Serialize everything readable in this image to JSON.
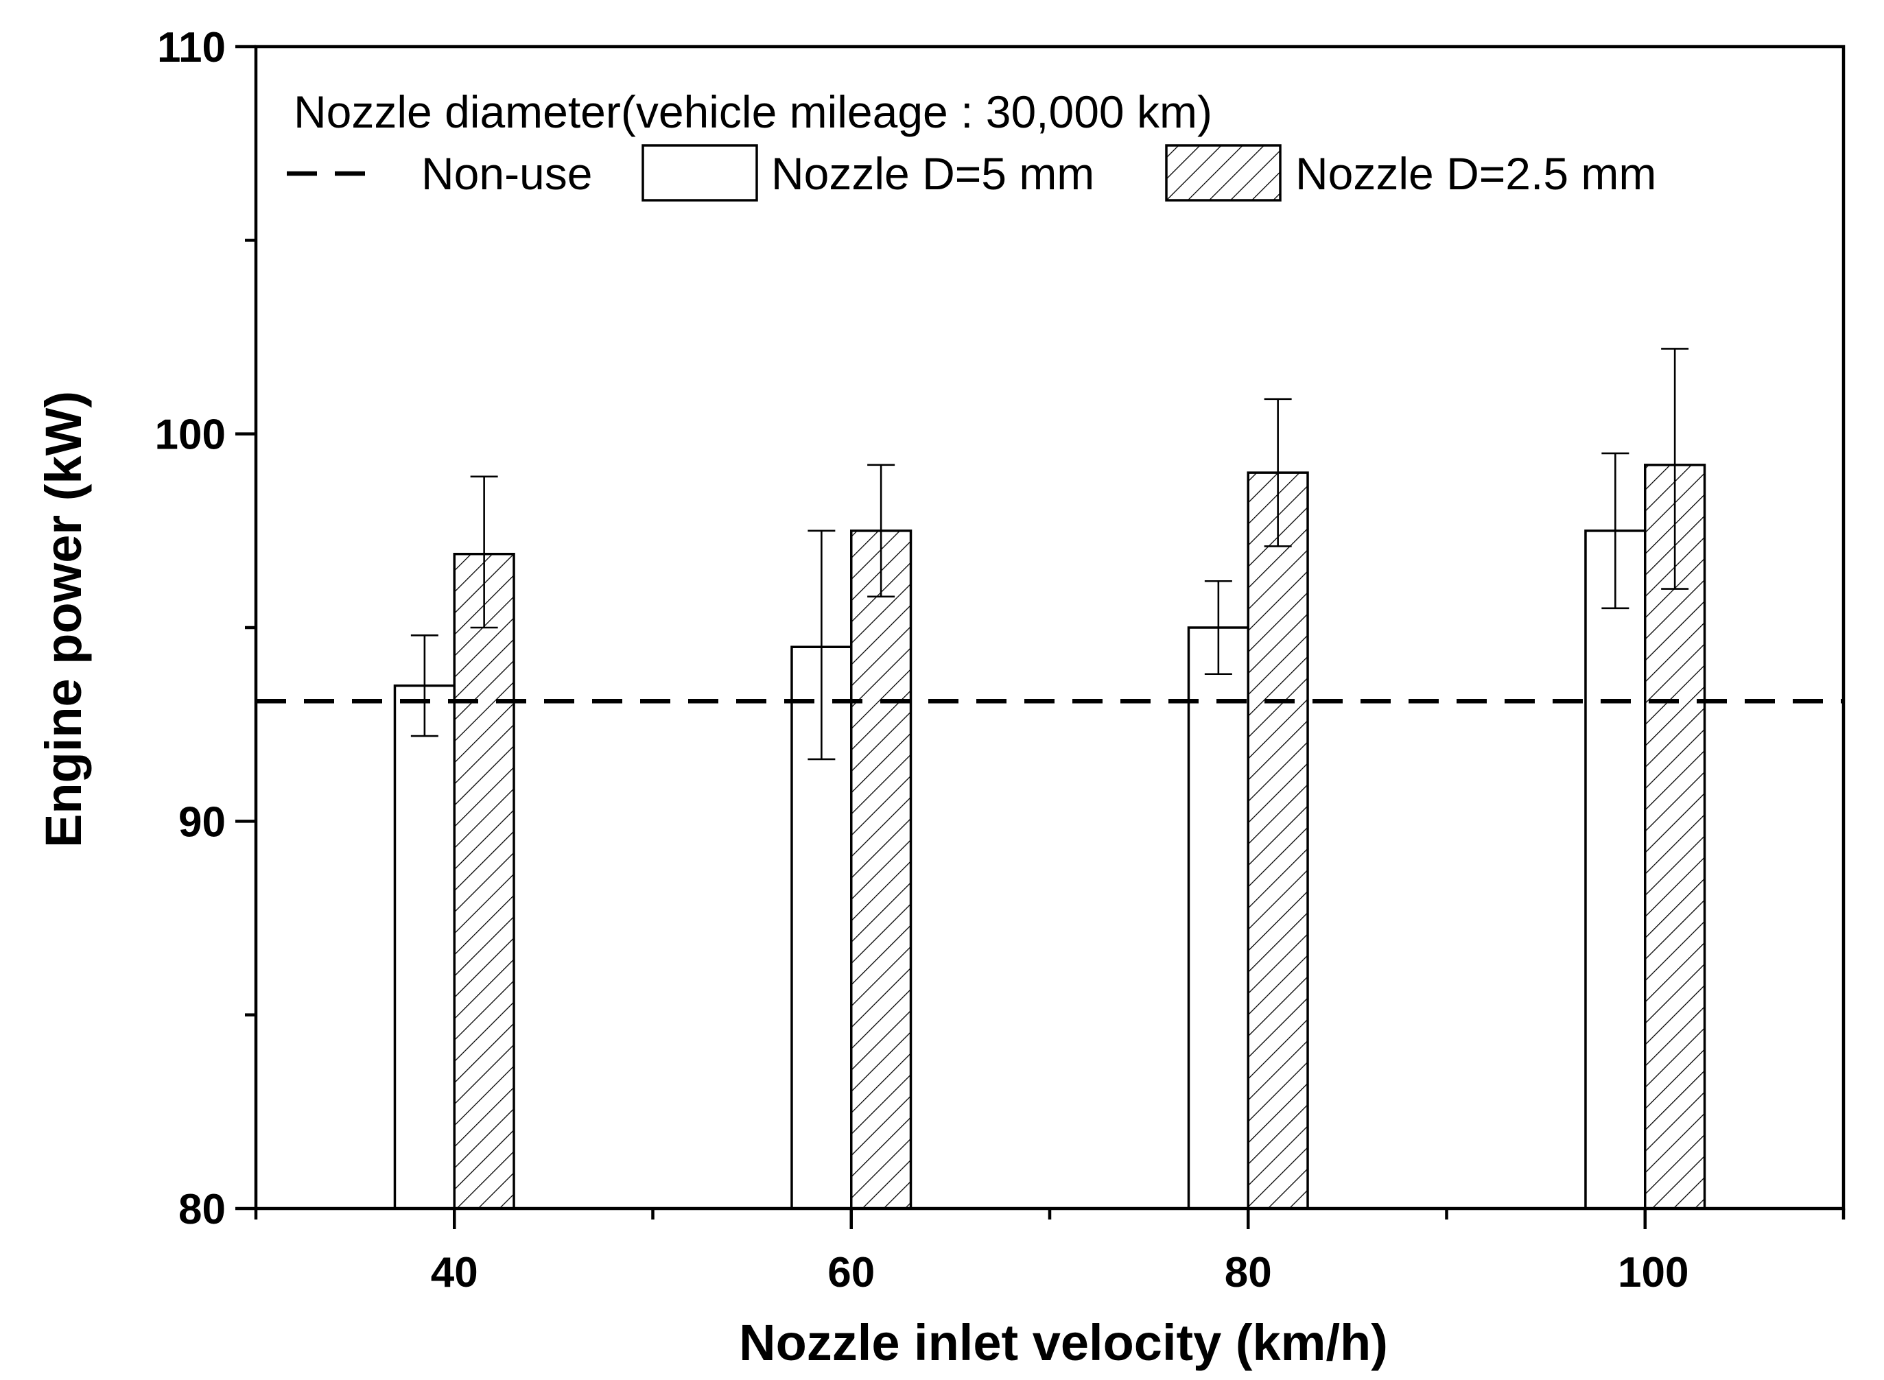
{
  "chart_data": {
    "type": "bar",
    "title": "",
    "xlabel": "Nozzle inlet velocity (km/h)",
    "ylabel": "Engine power (kW)",
    "categories": [
      "40",
      "60",
      "80",
      "100"
    ],
    "x": [
      40,
      60,
      80,
      100
    ],
    "xlim": [
      30,
      110
    ],
    "ylim": [
      80,
      110
    ],
    "yticks": [
      80,
      90,
      100,
      110
    ],
    "ytick_labels": [
      "80",
      "90",
      "100",
      "110"
    ],
    "xtick_labels": [
      "40",
      "60",
      "80",
      "100"
    ],
    "grid": false,
    "series": [
      {
        "name": "Nozzle D=5 mm",
        "fill": "white",
        "values": [
          93.5,
          94.5,
          95.0,
          97.5
        ],
        "error_low": [
          92.2,
          91.6,
          93.8,
          95.5
        ],
        "error_high": [
          94.8,
          97.5,
          96.2,
          99.5
        ]
      },
      {
        "name": "Nozzle D=2.5 mm",
        "fill": "hatched",
        "values": [
          96.9,
          97.5,
          99.0,
          99.2
        ],
        "error_low": [
          95.0,
          95.8,
          97.1,
          96.0
        ],
        "error_high": [
          98.9,
          99.2,
          100.9,
          102.2
        ]
      }
    ],
    "reference_line": {
      "name": "Non-use",
      "value": 93.1,
      "style": "dashed"
    },
    "legend": {
      "title": "Nozzle diameter(vehicle mileage : 30,000 km)",
      "placement": "top",
      "entries": [
        "Non-use",
        "Nozzle D=5 mm",
        "Nozzle D=2.5 mm"
      ]
    },
    "colors": {
      "line": "#000000",
      "bar_open": "#ffffff",
      "hatch": "#000000"
    }
  }
}
